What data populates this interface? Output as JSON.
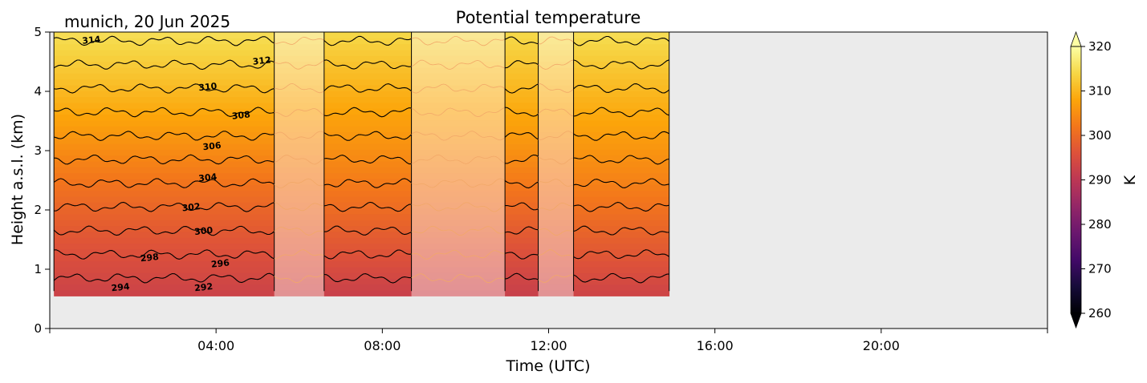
{
  "chart_data": {
    "type": "heatmap",
    "title": "Potential temperature",
    "subtitle": "munich, 20 Jun 2025",
    "xlabel": "Time (UTC)",
    "ylabel": "Height a.s.l. (km)",
    "xlim_hours": [
      0,
      24
    ],
    "ylim_km": [
      0,
      5
    ],
    "x_ticks": [
      {
        "hour": 4,
        "label": "04:00"
      },
      {
        "hour": 8,
        "label": "08:00"
      },
      {
        "hour": 12,
        "label": "12:00"
      },
      {
        "hour": 16,
        "label": "16:00"
      },
      {
        "hour": 20,
        "label": "20:00"
      }
    ],
    "y_ticks": [
      {
        "km": 0,
        "label": "0"
      },
      {
        "km": 1,
        "label": "1"
      },
      {
        "km": 2,
        "label": "2"
      },
      {
        "km": 3,
        "label": "3"
      },
      {
        "km": 4,
        "label": "4"
      },
      {
        "km": 5,
        "label": "5"
      }
    ],
    "colorbar": {
      "label": "K",
      "vmin": 260,
      "vmax": 320,
      "extend": "both",
      "colormap": "inferno",
      "ticks": [
        {
          "value": 260,
          "label": "260"
        },
        {
          "value": 270,
          "label": "270"
        },
        {
          "value": 280,
          "label": "280"
        },
        {
          "value": 290,
          "label": "290"
        },
        {
          "value": 300,
          "label": "300"
        },
        {
          "value": 310,
          "label": "310"
        },
        {
          "value": 320,
          "label": "320"
        }
      ]
    },
    "data_start_km": 0.55,
    "surface_theta_K": 292.5,
    "theta_lapse_K_per_km": 5.0,
    "data_segments": [
      {
        "start": 0.1,
        "end": 5.4,
        "quality": "good"
      },
      {
        "start": 5.4,
        "end": 6.6,
        "quality": "flagged"
      },
      {
        "start": 6.6,
        "end": 8.7,
        "quality": "good"
      },
      {
        "start": 8.7,
        "end": 10.95,
        "quality": "flagged"
      },
      {
        "start": 10.95,
        "end": 11.75,
        "quality": "good"
      },
      {
        "start": 11.75,
        "end": 12.6,
        "quality": "flagged"
      },
      {
        "start": 12.6,
        "end": 14.9,
        "quality": "good"
      }
    ],
    "contour_levels_K": [
      292,
      294,
      296,
      298,
      300,
      302,
      304,
      306,
      308,
      310,
      312,
      314
    ],
    "contour_labels": [
      {
        "text": "314",
        "hour": 1.0,
        "km": 4.87
      },
      {
        "text": "312",
        "hour": 5.1,
        "km": 4.52
      },
      {
        "text": "310",
        "hour": 3.8,
        "km": 4.08
      },
      {
        "text": "308",
        "hour": 4.6,
        "km": 3.6
      },
      {
        "text": "306",
        "hour": 3.9,
        "km": 3.08
      },
      {
        "text": "304",
        "hour": 3.8,
        "km": 2.55
      },
      {
        "text": "302",
        "hour": 3.4,
        "km": 2.05
      },
      {
        "text": "300",
        "hour": 3.7,
        "km": 1.65
      },
      {
        "text": "298",
        "hour": 2.4,
        "km": 1.2
      },
      {
        "text": "296",
        "hour": 4.1,
        "km": 1.1
      },
      {
        "text": "294",
        "hour": 1.7,
        "km": 0.7
      },
      {
        "text": "292",
        "hour": 3.7,
        "km": 0.7
      }
    ],
    "background_color": "#ebebeb",
    "contour_color": "#000000"
  }
}
